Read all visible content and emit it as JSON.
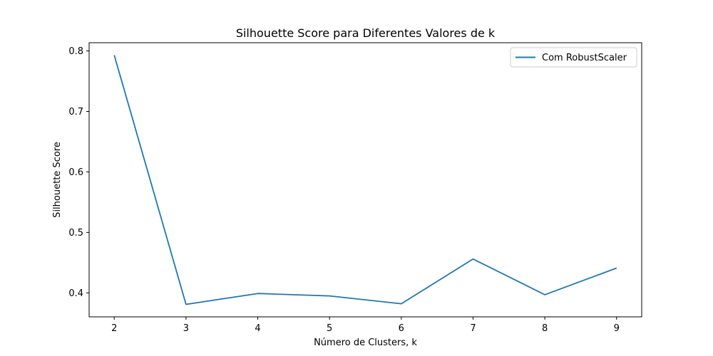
{
  "chart_data": {
    "type": "line",
    "title": "Silhouette Score para Diferentes Valores de k",
    "xlabel": "Número de Clusters, k",
    "ylabel": "Silhouette Score",
    "x": [
      2,
      3,
      4,
      5,
      6,
      7,
      8,
      9
    ],
    "series": [
      {
        "name": "Com RobustScaler",
        "values": [
          0.793,
          0.381,
          0.399,
          0.395,
          0.382,
          0.456,
          0.397,
          0.441
        ],
        "color": "#1f77b4"
      }
    ],
    "xticks": [
      2,
      3,
      4,
      5,
      6,
      7,
      8,
      9
    ],
    "yticks": [
      0.4,
      0.5,
      0.6,
      0.7,
      0.8
    ],
    "xlim": [
      1.65,
      9.35
    ],
    "ylim": [
      0.3604,
      0.8136
    ],
    "grid": false,
    "legend_position": "top-right"
  }
}
